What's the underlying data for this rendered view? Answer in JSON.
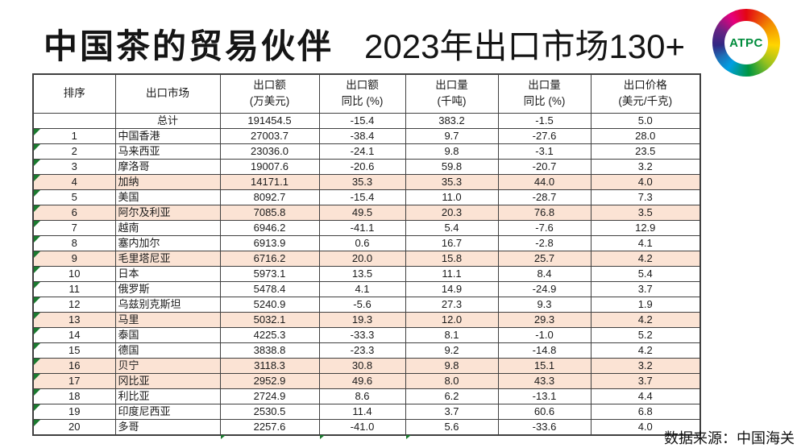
{
  "title": {
    "main": "中国茶的贸易伙伴",
    "sub": "2023年出口市场130+"
  },
  "logo": {
    "text": "ATPC"
  },
  "footer": {
    "source": "数据来源：中国海关"
  },
  "colors": {
    "highlight": "#FBE3D4",
    "flag_green": "#1B7A2F",
    "border": "#404040",
    "logo_text": "#008C3C"
  },
  "chart_data": {
    "type": "table",
    "title": "中国茶的贸易伙伴 2023年出口市场130+",
    "source": "数据来源：中国海关",
    "columns": [
      "排序",
      "出口市场",
      "出口额\n(万美元)",
      "出口额\n同比 (%)",
      "出口量\n(千吨)",
      "出口量\n同比 (%)",
      "出口价格\n(美元/千克)"
    ],
    "highlighted_ranks": [
      4,
      6,
      9,
      13,
      16,
      17
    ],
    "rows": [
      {
        "rank": "",
        "market": "总计",
        "values": [
          "191454.5",
          "-15.4",
          "383.2",
          "-1.5",
          "5.0"
        ],
        "flag": false,
        "highlight": false,
        "is_total": true
      },
      {
        "rank": "1",
        "market": "中国香港",
        "values": [
          "27003.7",
          "-38.4",
          "9.7",
          "-27.6",
          "28.0"
        ],
        "flag": true,
        "highlight": false
      },
      {
        "rank": "2",
        "market": "马来西亚",
        "values": [
          "23036.0",
          "-24.1",
          "9.8",
          "-3.1",
          "23.5"
        ],
        "flag": true,
        "highlight": false
      },
      {
        "rank": "3",
        "market": "摩洛哥",
        "values": [
          "19007.6",
          "-20.6",
          "59.8",
          "-20.7",
          "3.2"
        ],
        "flag": true,
        "highlight": false
      },
      {
        "rank": "4",
        "market": "加纳",
        "values": [
          "14171.1",
          "35.3",
          "35.3",
          "44.0",
          "4.0"
        ],
        "flag": true,
        "highlight": true
      },
      {
        "rank": "5",
        "market": "美国",
        "values": [
          "8092.7",
          "-15.4",
          "11.0",
          "-28.7",
          "7.3"
        ],
        "flag": true,
        "highlight": false
      },
      {
        "rank": "6",
        "market": "阿尔及利亚",
        "values": [
          "7085.8",
          "49.5",
          "20.3",
          "76.8",
          "3.5"
        ],
        "flag": true,
        "highlight": true
      },
      {
        "rank": "7",
        "market": "越南",
        "values": [
          "6946.2",
          "-41.1",
          "5.4",
          "-7.6",
          "12.9"
        ],
        "flag": true,
        "highlight": false
      },
      {
        "rank": "8",
        "market": "塞内加尔",
        "values": [
          "6913.9",
          "0.6",
          "16.7",
          "-2.8",
          "4.1"
        ],
        "flag": true,
        "highlight": false
      },
      {
        "rank": "9",
        "market": "毛里塔尼亚",
        "values": [
          "6716.2",
          "20.0",
          "15.8",
          "25.7",
          "4.2"
        ],
        "flag": true,
        "highlight": true
      },
      {
        "rank": "10",
        "market": "日本",
        "values": [
          "5973.1",
          "13.5",
          "11.1",
          "8.4",
          "5.4"
        ],
        "flag": true,
        "highlight": false
      },
      {
        "rank": "11",
        "market": "俄罗斯",
        "values": [
          "5478.4",
          "4.1",
          "14.9",
          "-24.9",
          "3.7"
        ],
        "flag": true,
        "highlight": false
      },
      {
        "rank": "12",
        "market": "乌兹别克斯坦",
        "values": [
          "5240.9",
          "-5.6",
          "27.3",
          "9.3",
          "1.9"
        ],
        "flag": true,
        "highlight": false
      },
      {
        "rank": "13",
        "market": "马里",
        "values": [
          "5032.1",
          "19.3",
          "12.0",
          "29.3",
          "4.2"
        ],
        "flag": true,
        "highlight": true
      },
      {
        "rank": "14",
        "market": "泰国",
        "values": [
          "4225.3",
          "-33.3",
          "8.1",
          "-1.0",
          "5.2"
        ],
        "flag": true,
        "highlight": false
      },
      {
        "rank": "15",
        "market": "德国",
        "values": [
          "3838.8",
          "-23.3",
          "9.2",
          "-14.8",
          "4.2"
        ],
        "flag": true,
        "highlight": false
      },
      {
        "rank": "16",
        "market": "贝宁",
        "values": [
          "3118.3",
          "30.8",
          "9.8",
          "15.1",
          "3.2"
        ],
        "flag": true,
        "highlight": true
      },
      {
        "rank": "17",
        "market": "冈比亚",
        "values": [
          "2952.9",
          "49.6",
          "8.0",
          "43.3",
          "3.7"
        ],
        "flag": true,
        "highlight": true
      },
      {
        "rank": "18",
        "market": "利比亚",
        "values": [
          "2724.9",
          "8.6",
          "6.2",
          "-13.1",
          "4.4"
        ],
        "flag": true,
        "highlight": false
      },
      {
        "rank": "19",
        "market": "印度尼西亚",
        "values": [
          "2530.5",
          "11.4",
          "3.7",
          "60.6",
          "6.8"
        ],
        "flag": true,
        "highlight": false
      },
      {
        "rank": "20",
        "market": "多哥",
        "values": [
          "2257.6",
          "-41.0",
          "5.6",
          "-33.6",
          "4.0"
        ],
        "flag": true,
        "highlight": false
      }
    ]
  }
}
